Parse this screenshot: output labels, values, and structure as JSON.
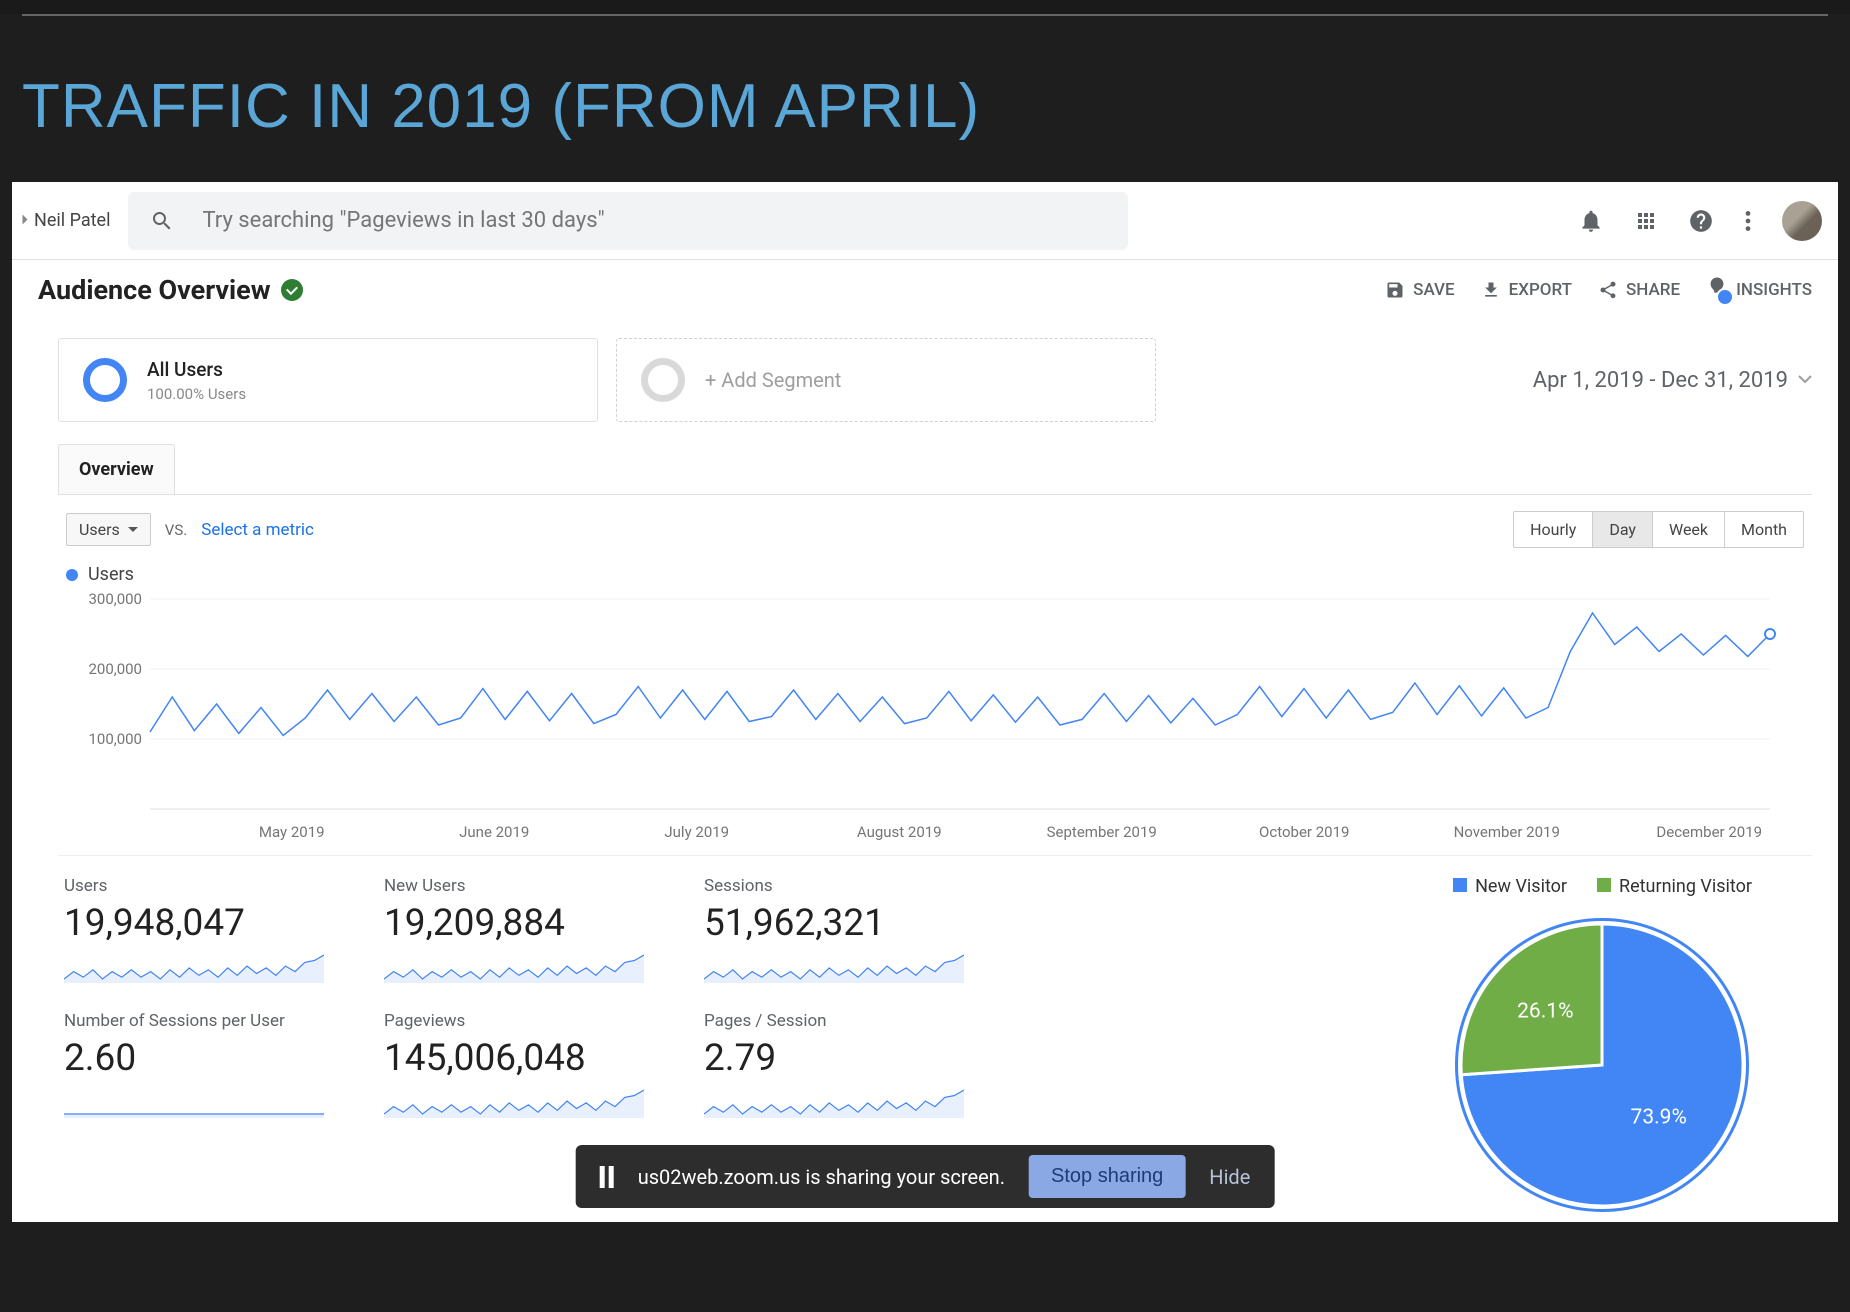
{
  "slide": {
    "title": "TRAFFIC IN 2019 (FROM APRIL)",
    "title_color": "#5aa6d6",
    "bg_color": "#1e1e1e"
  },
  "topbar": {
    "account_label": "Neil Patel",
    "search_placeholder": "Try searching \"Pageviews in last 30 days\""
  },
  "header": {
    "page_title": "Audience Overview",
    "actions": {
      "save": "SAVE",
      "export": "EXPORT",
      "share": "SHARE",
      "insights": "INSIGHTS"
    }
  },
  "segments": {
    "all_users_title": "All Users",
    "all_users_sub": "100.00% Users",
    "add_segment": "+ Add Segment",
    "date_range": "Apr 1, 2019 - Dec 31, 2019"
  },
  "tabs": {
    "overview": "Overview"
  },
  "chart_controls": {
    "primary_metric": "Users",
    "vs": "VS.",
    "select_metric": "Select a metric",
    "granularity": [
      "Hourly",
      "Day",
      "Week",
      "Month"
    ],
    "active_granularity": "Day"
  },
  "line_chart": {
    "type": "line",
    "series_label": "Users",
    "color": "#4285f4",
    "ylim": [
      0,
      300000
    ],
    "yticks": [
      100000,
      200000,
      300000
    ],
    "ytick_labels": [
      "100,000",
      "200,000",
      "300,000"
    ],
    "grid_color": "#f0f0f0",
    "axis_color": "#dcdcdc",
    "line_width": 1.5,
    "end_marker_radius": 5,
    "x_labels": [
      "May 2019",
      "June 2019",
      "July 2019",
      "August 2019",
      "September 2019",
      "October 2019",
      "November 2019",
      "December 2019"
    ],
    "values": [
      110000,
      160000,
      112000,
      150000,
      108000,
      145000,
      105000,
      130000,
      170000,
      128000,
      165000,
      125000,
      160000,
      120000,
      130000,
      172000,
      128000,
      168000,
      126000,
      165000,
      122000,
      135000,
      175000,
      130000,
      170000,
      128000,
      168000,
      125000,
      132000,
      170000,
      128000,
      165000,
      125000,
      160000,
      122000,
      130000,
      168000,
      126000,
      163000,
      124000,
      160000,
      120000,
      128000,
      165000,
      125000,
      162000,
      123000,
      158000,
      120000,
      135000,
      175000,
      132000,
      172000,
      130000,
      170000,
      128000,
      138000,
      180000,
      135000,
      176000,
      133000,
      173000,
      130000,
      145000,
      225000,
      280000,
      235000,
      260000,
      225000,
      250000,
      220000,
      248000,
      218000,
      250000
    ]
  },
  "metrics": [
    {
      "label": "Users",
      "value": "19,948,047"
    },
    {
      "label": "New Users",
      "value": "19,209,884"
    },
    {
      "label": "Sessions",
      "value": "51,962,321"
    },
    {
      "label": "Number of Sessions per User",
      "value": "2.60"
    },
    {
      "label": "Pageviews",
      "value": "145,006,048"
    },
    {
      "label": "Pages / Session",
      "value": "2.79"
    }
  ],
  "sparkline": {
    "color": "#4285f4",
    "fill": "#e8f0fe",
    "width": 1.2,
    "values": [
      10,
      14,
      11,
      15,
      10,
      14,
      11,
      15,
      11,
      14,
      10,
      15,
      11,
      16,
      12,
      15,
      11,
      16,
      12,
      17,
      13,
      16,
      12,
      17,
      14,
      19,
      20,
      23
    ]
  },
  "sparkline_flat": {
    "color": "#4285f4",
    "fill": "#e8f0fe",
    "values": [
      14,
      14,
      14,
      14,
      14,
      14,
      14,
      14,
      14,
      14,
      14,
      14,
      14,
      14,
      14,
      14,
      14,
      14,
      14,
      14,
      14,
      14,
      14,
      14,
      14,
      14,
      14,
      14
    ]
  },
  "pie": {
    "type": "pie",
    "legend": [
      {
        "label": "New Visitor",
        "color": "#4285f4"
      },
      {
        "label": "Returning Visitor",
        "color": "#71ad47"
      }
    ],
    "slices": [
      {
        "label": "73.9%",
        "value": 73.9,
        "color": "#4285f4"
      },
      {
        "label": "26.1%",
        "value": 26.1,
        "color": "#71ad47"
      }
    ],
    "border_color": "#ffffff",
    "ring_color": "#4285f4"
  },
  "zoom": {
    "text": "us02web.zoom.us is sharing your screen.",
    "stop": "Stop sharing",
    "hide": "Hide"
  }
}
